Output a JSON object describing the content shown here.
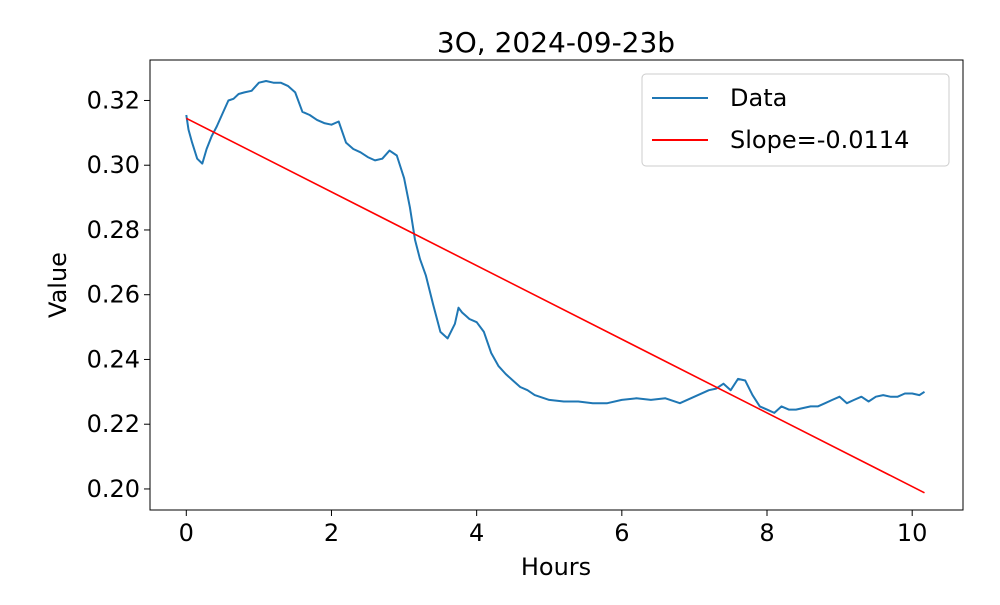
{
  "chart_data": {
    "type": "line",
    "title": "3O, 2024-09-23b",
    "xlabel": "Hours",
    "ylabel": "Value",
    "xlim": [
      -0.5,
      10.7
    ],
    "ylim": [
      0.1935,
      0.3325
    ],
    "xticks": [
      0,
      2,
      4,
      6,
      8,
      10
    ],
    "xtick_labels": [
      "0",
      "2",
      "4",
      "6",
      "8",
      "10"
    ],
    "yticks": [
      0.2,
      0.22,
      0.24,
      0.26,
      0.28,
      0.3,
      0.32
    ],
    "ytick_labels": [
      "0.20",
      "0.22",
      "0.24",
      "0.26",
      "0.28",
      "0.30",
      "0.32"
    ],
    "grid": false,
    "legend_position": "top-right",
    "series": [
      {
        "name": "Data",
        "color": "#1f77b4",
        "x": [
          0.0,
          0.03,
          0.08,
          0.15,
          0.22,
          0.28,
          0.35,
          0.42,
          0.5,
          0.58,
          0.65,
          0.72,
          0.8,
          0.9,
          1.0,
          1.1,
          1.2,
          1.3,
          1.4,
          1.5,
          1.6,
          1.7,
          1.8,
          1.9,
          2.0,
          2.1,
          2.2,
          2.3,
          2.4,
          2.5,
          2.6,
          2.7,
          2.8,
          2.9,
          3.0,
          3.08,
          3.15,
          3.22,
          3.3,
          3.4,
          3.5,
          3.6,
          3.7,
          3.75,
          3.8,
          3.85,
          3.9,
          4.0,
          4.1,
          4.2,
          4.3,
          4.4,
          4.5,
          4.6,
          4.7,
          4.8,
          5.0,
          5.2,
          5.4,
          5.6,
          5.8,
          6.0,
          6.2,
          6.4,
          6.6,
          6.8,
          7.0,
          7.2,
          7.3,
          7.4,
          7.5,
          7.6,
          7.7,
          7.8,
          7.9,
          8.0,
          8.1,
          8.2,
          8.3,
          8.4,
          8.5,
          8.6,
          8.7,
          8.8,
          8.9,
          9.0,
          9.1,
          9.2,
          9.3,
          9.4,
          9.5,
          9.6,
          9.7,
          9.8,
          9.9,
          10.0,
          10.1,
          10.17
        ],
        "y": [
          0.3155,
          0.311,
          0.307,
          0.302,
          0.3005,
          0.305,
          0.309,
          0.312,
          0.316,
          0.32,
          0.3205,
          0.322,
          0.3225,
          0.323,
          0.3255,
          0.326,
          0.3255,
          0.3255,
          0.3245,
          0.3225,
          0.3165,
          0.3155,
          0.314,
          0.313,
          0.3125,
          0.3135,
          0.307,
          0.305,
          0.304,
          0.3025,
          0.3015,
          0.302,
          0.3045,
          0.303,
          0.296,
          0.287,
          0.277,
          0.271,
          0.266,
          0.257,
          0.2485,
          0.2465,
          0.251,
          0.256,
          0.2545,
          0.2535,
          0.2525,
          0.2515,
          0.2485,
          0.242,
          0.238,
          0.2355,
          0.2335,
          0.2315,
          0.2305,
          0.229,
          0.2275,
          0.227,
          0.227,
          0.2265,
          0.2265,
          0.2275,
          0.228,
          0.2275,
          0.228,
          0.2265,
          0.2285,
          0.2305,
          0.231,
          0.2325,
          0.2305,
          0.234,
          0.2335,
          0.229,
          0.2255,
          0.2245,
          0.2235,
          0.2255,
          0.2245,
          0.2245,
          0.225,
          0.2255,
          0.2255,
          0.2265,
          0.2275,
          0.2285,
          0.2265,
          0.2275,
          0.2285,
          0.227,
          0.2285,
          0.229,
          0.2285,
          0.2285,
          0.2295,
          0.2295,
          0.229,
          0.23
        ]
      },
      {
        "name": "Slope=-0.0114",
        "color": "#ff0000",
        "x": [
          0.0,
          10.17
        ],
        "y": [
          0.3145,
          0.1988
        ]
      }
    ]
  }
}
